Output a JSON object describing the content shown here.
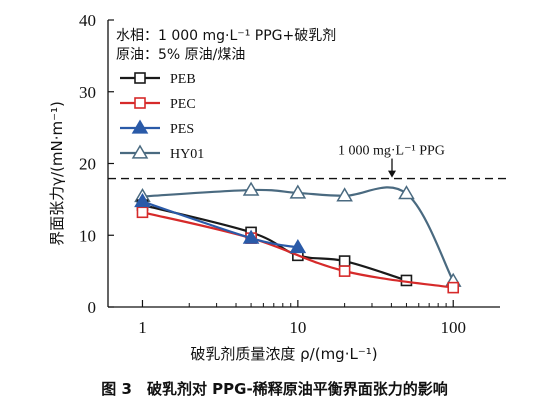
{
  "caption": "图 3　破乳剂对 PPG-稀释原油平衡界面张力的影响",
  "chart_data": {
    "type": "line",
    "xscale": "log",
    "xlim": [
      0.6,
      200
    ],
    "ylim": [
      0,
      40
    ],
    "xticks": [
      1,
      10,
      100
    ],
    "xtick_labels": [
      "1",
      "10",
      "100"
    ],
    "yticks": [
      0,
      10,
      20,
      30,
      40
    ],
    "ytick_labels": [
      "0",
      "10",
      "20",
      "30",
      "40"
    ],
    "xlabel": "破乳剂质量浓度 ρ/(mg·L⁻¹)",
    "ylabel": "界面张力γ/(mN·m⁻¹)",
    "annotations": [
      "水相：1 000 mg·L⁻¹ PPG+破乳剂",
      "原油：5% 原油/煤油"
    ],
    "reference_line": {
      "y": 17.9,
      "label": "1 000 mg·L⁻¹ PPG",
      "style": "dashed"
    },
    "legend_position": "left",
    "series": [
      {
        "name": "PEB",
        "marker": "square-open",
        "color": "#1a1a1a",
        "x": [
          1,
          5,
          10,
          20,
          50
        ],
        "y": [
          14.2,
          10.4,
          7.2,
          6.4,
          3.7
        ]
      },
      {
        "name": "PEC",
        "marker": "square-open",
        "color": "#d62a2a",
        "x": [
          1,
          5,
          20,
          100
        ],
        "y": [
          13.2,
          9.6,
          5.0,
          2.7
        ]
      },
      {
        "name": "PES",
        "marker": "triangle-filled",
        "color": "#2a5aa8",
        "x": [
          1,
          5,
          10
        ],
        "y": [
          14.7,
          9.6,
          8.3
        ]
      },
      {
        "name": "HY01",
        "marker": "triangle-open",
        "color": "#4a6a80",
        "x": [
          1,
          5,
          10,
          20,
          50,
          100
        ],
        "y": [
          15.4,
          16.3,
          15.9,
          15.5,
          15.8,
          3.6
        ]
      }
    ]
  }
}
